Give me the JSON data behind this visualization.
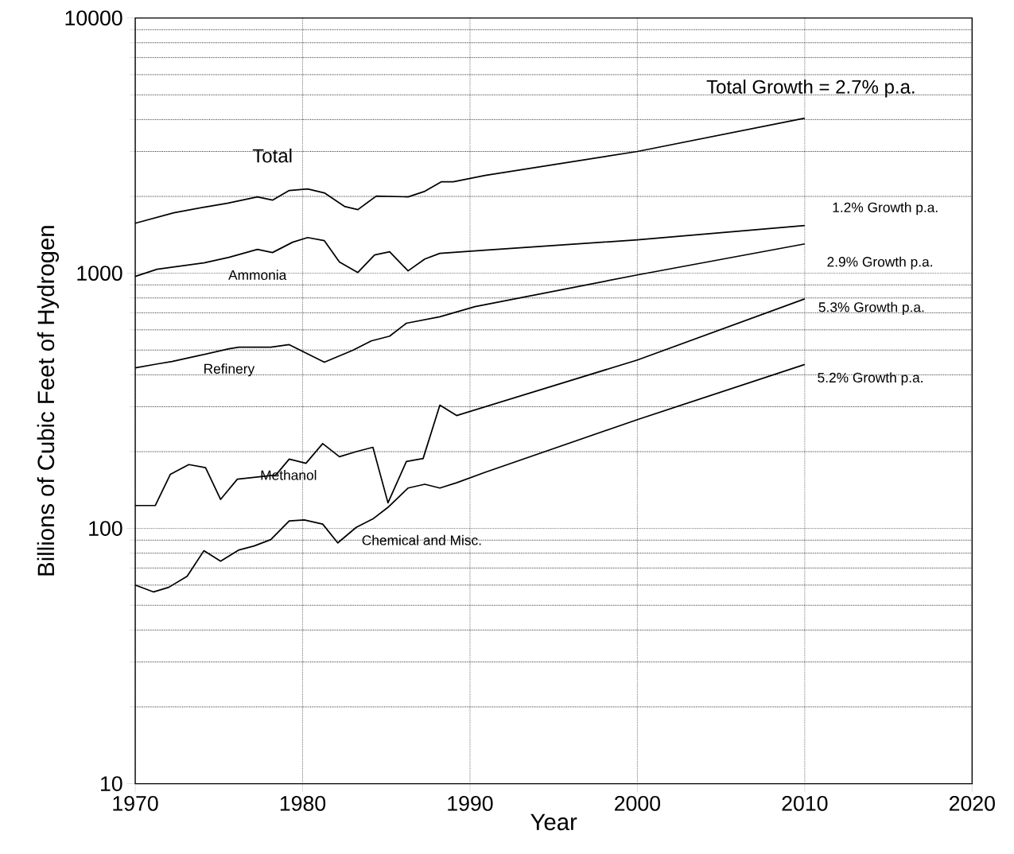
{
  "chart_data": {
    "type": "line",
    "xlabel": "Year",
    "ylabel": "Billions of Cubic Feet of Hydrogen",
    "log": "y",
    "grid": true,
    "legend": false,
    "marker": "none",
    "line_style": "solid",
    "xlim": [
      1970,
      2020
    ],
    "xticks": [
      1970,
      1980,
      1990,
      2000,
      2010,
      2020
    ],
    "ylim": [
      10,
      10000
    ],
    "yticks": [
      10,
      100,
      1000,
      10000
    ],
    "series": [
      {
        "name": "Total",
        "color": "#000000",
        "x": [
          1970,
          1972.3,
          1974.1,
          1975.5,
          1977.3,
          1978.2,
          1979.2,
          1980.3,
          1981.3,
          1982.5,
          1983.3,
          1984.4,
          1986.3,
          1987.3,
          1988.3,
          1989,
          1990.9,
          2000,
          2010
        ],
        "values": [
          1570,
          1725,
          1814,
          1880,
          1992,
          1935,
          2110,
          2140,
          2065,
          1828,
          1776,
          2006,
          1992,
          2094,
          2282,
          2282,
          2415,
          3000,
          4050
        ]
      },
      {
        "name": "Ammonia",
        "color": "#000000",
        "x": [
          1970,
          1971.3,
          1974.1,
          1975.6,
          1977.3,
          1978.2,
          1979.4,
          1980.3,
          1981.3,
          1982.2,
          1983.3,
          1984.3,
          1985.2,
          1986.3,
          1987.3,
          1988.2,
          1990.9,
          2000,
          2010
        ],
        "values": [
          972,
          1036,
          1098,
          1154,
          1240,
          1205,
          1323,
          1380,
          1342,
          1106,
          1007,
          1180,
          1214,
          1022,
          1137,
          1197,
          1231,
          1352,
          1538
        ]
      },
      {
        "name": "Refinery",
        "color": "#000000",
        "x": [
          1970,
          1971.3,
          1972.2,
          1973.7,
          1975.6,
          1976.2,
          1978.1,
          1979.2,
          1981.3,
          1983,
          1984.1,
          1985.2,
          1986.2,
          1988.2,
          1990.3,
          2000,
          2010
        ],
        "values": [
          426,
          441,
          451,
          474,
          506,
          513,
          513,
          525,
          448,
          499,
          543,
          567,
          637,
          675,
          740,
          985,
          1303
        ]
      },
      {
        "name": "Methanol",
        "color": "#000000",
        "x": [
          1970,
          1971.2,
          1972.1,
          1973.2,
          1974.2,
          1975.1,
          1976.1,
          1978.4,
          1979.2,
          1980.2,
          1981.2,
          1982.2,
          1983.2,
          1984.2,
          1985.1,
          1986.2,
          1987.2,
          1988.2,
          1989.2,
          2000,
          2010
        ],
        "values": [
          123,
          123,
          163,
          178,
          173,
          130,
          156,
          162,
          187,
          180,
          215,
          191,
          200,
          208,
          126,
          183,
          188,
          304,
          277,
          457,
          794
        ]
      },
      {
        "name": "Chemical and Misc.",
        "color": "#000000",
        "x": [
          1970,
          1971.1,
          1972,
          1973.1,
          1974.1,
          1975.1,
          1976.2,
          1977.1,
          1978.1,
          1979.2,
          1980.1,
          1981.2,
          1982.1,
          1983.2,
          1984.2,
          1985.1,
          1986.3,
          1987.3,
          1988.2,
          1989.2,
          1990.9,
          2000,
          2010
        ],
        "values": [
          60,
          56.4,
          58.8,
          65,
          81.8,
          74.5,
          82.4,
          85.4,
          90.4,
          107,
          108,
          104,
          87.8,
          101,
          109,
          121,
          144,
          149,
          144,
          151,
          166,
          267,
          439
        ]
      }
    ],
    "annotations": [
      "Total Growth = 2.7% p.a.",
      "1.2% Growth p.a.",
      "2.9% Growth p.a.",
      "5.3% Growth p.a.",
      "5.2% Growth p.a."
    ]
  }
}
